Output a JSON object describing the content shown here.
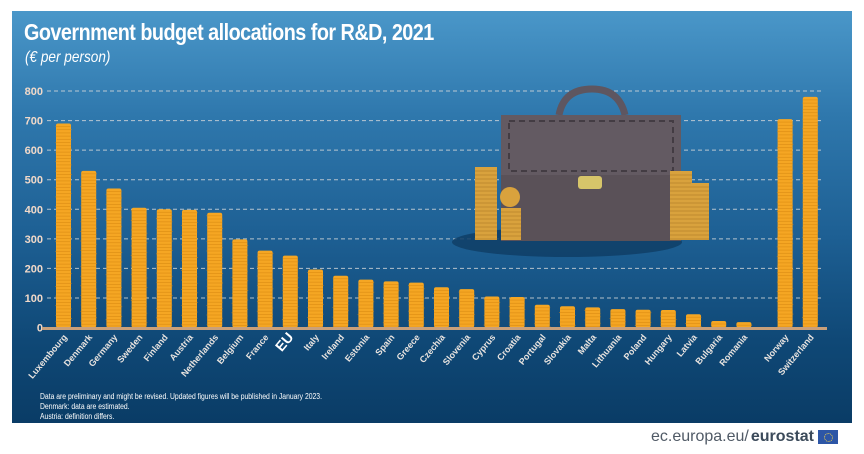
{
  "source_url_text": {
    "prefix": "ec.europa.eu/",
    "brand": "eurostat"
  },
  "notes": [
    "Data are preliminary and might be revised. Updated figures will be published in January 2023.",
    "Denmark: data are estimated.",
    "Austria: definition differs."
  ],
  "colors": {
    "coin": "#f5a623",
    "coin_dark": "#d98a12",
    "baseline": "#c9a07a",
    "gridline": "#dcdcdc",
    "briefcase": "#5a5158"
  },
  "chart_data": {
    "type": "bar",
    "title": "Government budget allocations for R&D, 2021",
    "subtitle": "(€ per person)",
    "xlabel": "",
    "ylabel": "€ per person",
    "ylim": [
      0,
      800
    ],
    "yticks": [
      0,
      100,
      200,
      300,
      400,
      500,
      600,
      700,
      800
    ],
    "grid": true,
    "highlight": "EU",
    "categories": [
      "Luxembourg",
      "Denmark",
      "Germany",
      "Sweden",
      "Finland",
      "Austria",
      "Netherlands",
      "Belgium",
      "France",
      "EU",
      "Italy",
      "Ireland",
      "Estonia",
      "Spain",
      "Greece",
      "Czechia",
      "Slovenia",
      "Cyprus",
      "Croatia",
      "Portugal",
      "Slovakia",
      "Malta",
      "Lithuania",
      "Poland",
      "Hungary",
      "Latvia",
      "Bulgaria",
      "Romania",
      "Norway",
      "Switzerland"
    ],
    "values": [
      690,
      530,
      470,
      405,
      400,
      398,
      388,
      298,
      260,
      243,
      196,
      175,
      162,
      156,
      152,
      136,
      130,
      105,
      103,
      77,
      72,
      68,
      62,
      60,
      59,
      45,
      22,
      18,
      705,
      780
    ]
  }
}
